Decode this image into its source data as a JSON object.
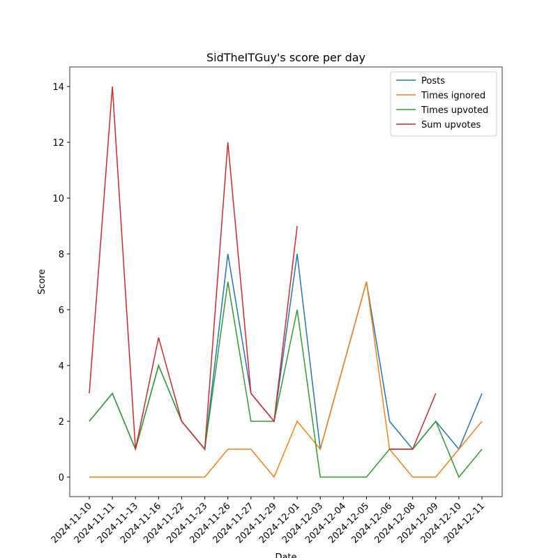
{
  "chart_data": {
    "type": "line",
    "title": "SidTheITGuy's score per day",
    "xlabel": "Date",
    "ylabel": "Score",
    "categories": [
      "2024-11-10",
      "2024-11-11",
      "2024-11-13",
      "2024-11-16",
      "2024-11-22",
      "2024-11-23",
      "2024-11-26",
      "2024-11-27",
      "2024-11-29",
      "2024-12-01",
      "2024-12-03",
      "2024-12-04",
      "2024-12-05",
      "2024-12-06",
      "2024-12-08",
      "2024-12-09",
      "2024-12-10",
      "2024-12-11"
    ],
    "series": [
      {
        "name": "Posts",
        "color": "#1f77b4",
        "values": [
          2,
          3,
          1,
          4,
          2,
          1,
          8,
          3,
          2,
          8,
          1,
          4,
          7,
          2,
          1,
          2,
          1,
          3
        ]
      },
      {
        "name": "Times ignored",
        "color": "#ff7f0e",
        "values": [
          0,
          0,
          0,
          0,
          0,
          0,
          1,
          1,
          0,
          2,
          1,
          4,
          7,
          1,
          0,
          0,
          1,
          2
        ]
      },
      {
        "name": "Times upvoted",
        "color": "#2ca02c",
        "values": [
          2,
          3,
          1,
          4,
          2,
          1,
          7,
          2,
          2,
          6,
          0,
          0,
          0,
          1,
          1,
          2,
          0,
          1
        ]
      },
      {
        "name": "Sum upvotes",
        "color": "#d62728",
        "values": [
          3,
          14,
          1,
          5,
          2,
          1,
          12,
          3,
          2,
          9,
          null,
          null,
          null,
          1,
          1,
          3,
          null,
          null
        ]
      }
    ],
    "ylim": [
      -0.7,
      14.7
    ],
    "yticks": [
      0,
      2,
      4,
      6,
      8,
      10,
      12,
      14
    ],
    "legend": "upper right"
  }
}
